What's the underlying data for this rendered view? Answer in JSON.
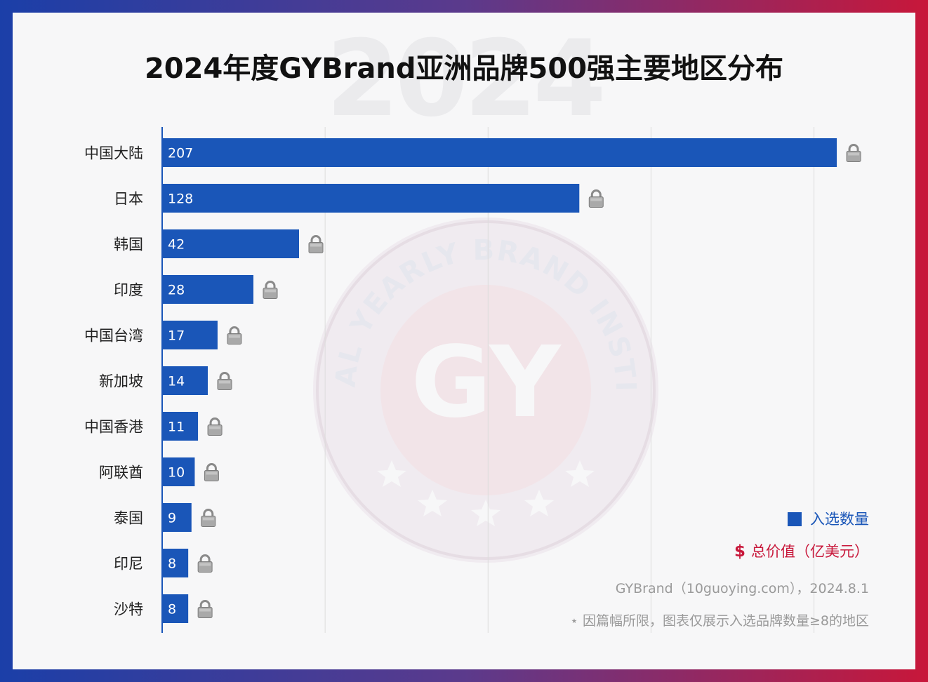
{
  "title": "2024年度GYBrand亚洲品牌500强主要地区分布",
  "watermark": {
    "year": "2024",
    "seal_text": "GLOBAL YEARLY BRAND INSTITUTE",
    "seal_letters": "GY"
  },
  "legend": {
    "count_label": "入选数量",
    "value_symbol": "$",
    "value_label": "总价值（亿美元）"
  },
  "source": "GYBrand（10guoying.com），2024.8.1",
  "note": "⋆ 因篇幅所限，图表仅展示入选品牌数量≥8的地区",
  "colors": {
    "bar": "#1a56b8",
    "axis": "#1a56b8",
    "grid": "#dcdcdc",
    "value_red": "#c8173a",
    "frame_left": "#1b3fa8",
    "frame_right": "#c8173a"
  },
  "chart_data": {
    "type": "bar",
    "orientation": "horizontal",
    "categories": [
      "中国大陆",
      "日本",
      "韩国",
      "印度",
      "中国台湾",
      "新加坡",
      "中国香港",
      "阿联酋",
      "泰国",
      "印尼",
      "沙特"
    ],
    "values": [
      207,
      128,
      42,
      28,
      17,
      14,
      11,
      10,
      9,
      8,
      8
    ],
    "value_labels": [
      "207",
      "128",
      "42",
      "28",
      "17",
      "14",
      "11",
      "10",
      "9",
      "8",
      "8"
    ],
    "xlim": [
      0,
      210
    ],
    "grid": true,
    "legend_placement": "bottom-right",
    "locked_value_icon": "lock-icon"
  }
}
